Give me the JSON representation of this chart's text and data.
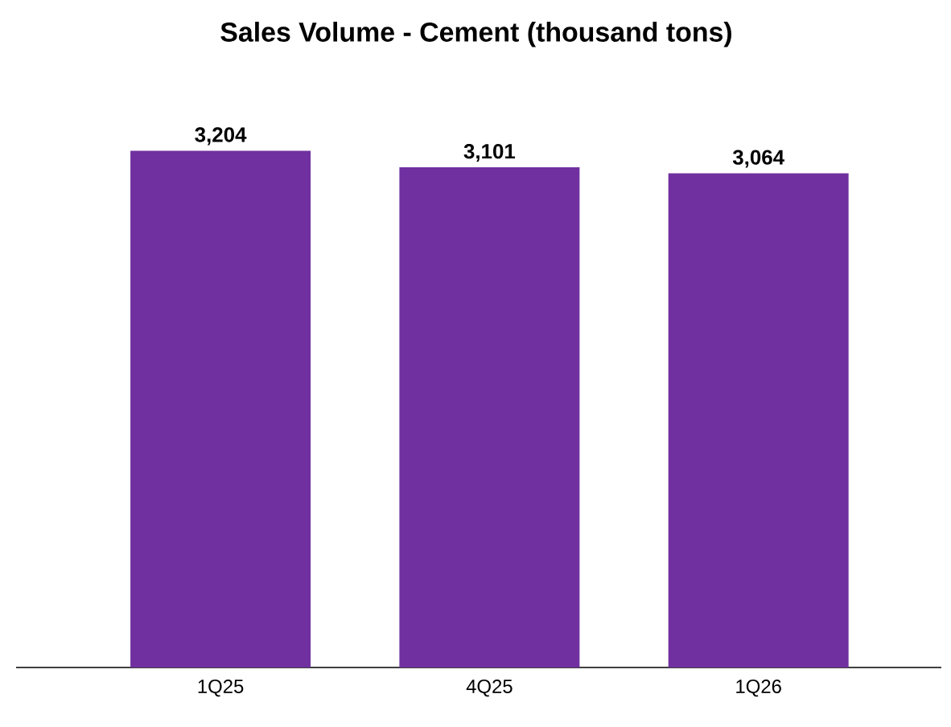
{
  "chart_data": {
    "type": "bar",
    "title": "Sales Volume - Cement (thousand tons)",
    "categories": [
      "1Q25",
      "4Q25",
      "1Q26"
    ],
    "values": [
      3204,
      3101,
      3064
    ],
    "value_labels": [
      "3,204",
      "3,101",
      "3,064"
    ],
    "color": "#7030a0"
  }
}
